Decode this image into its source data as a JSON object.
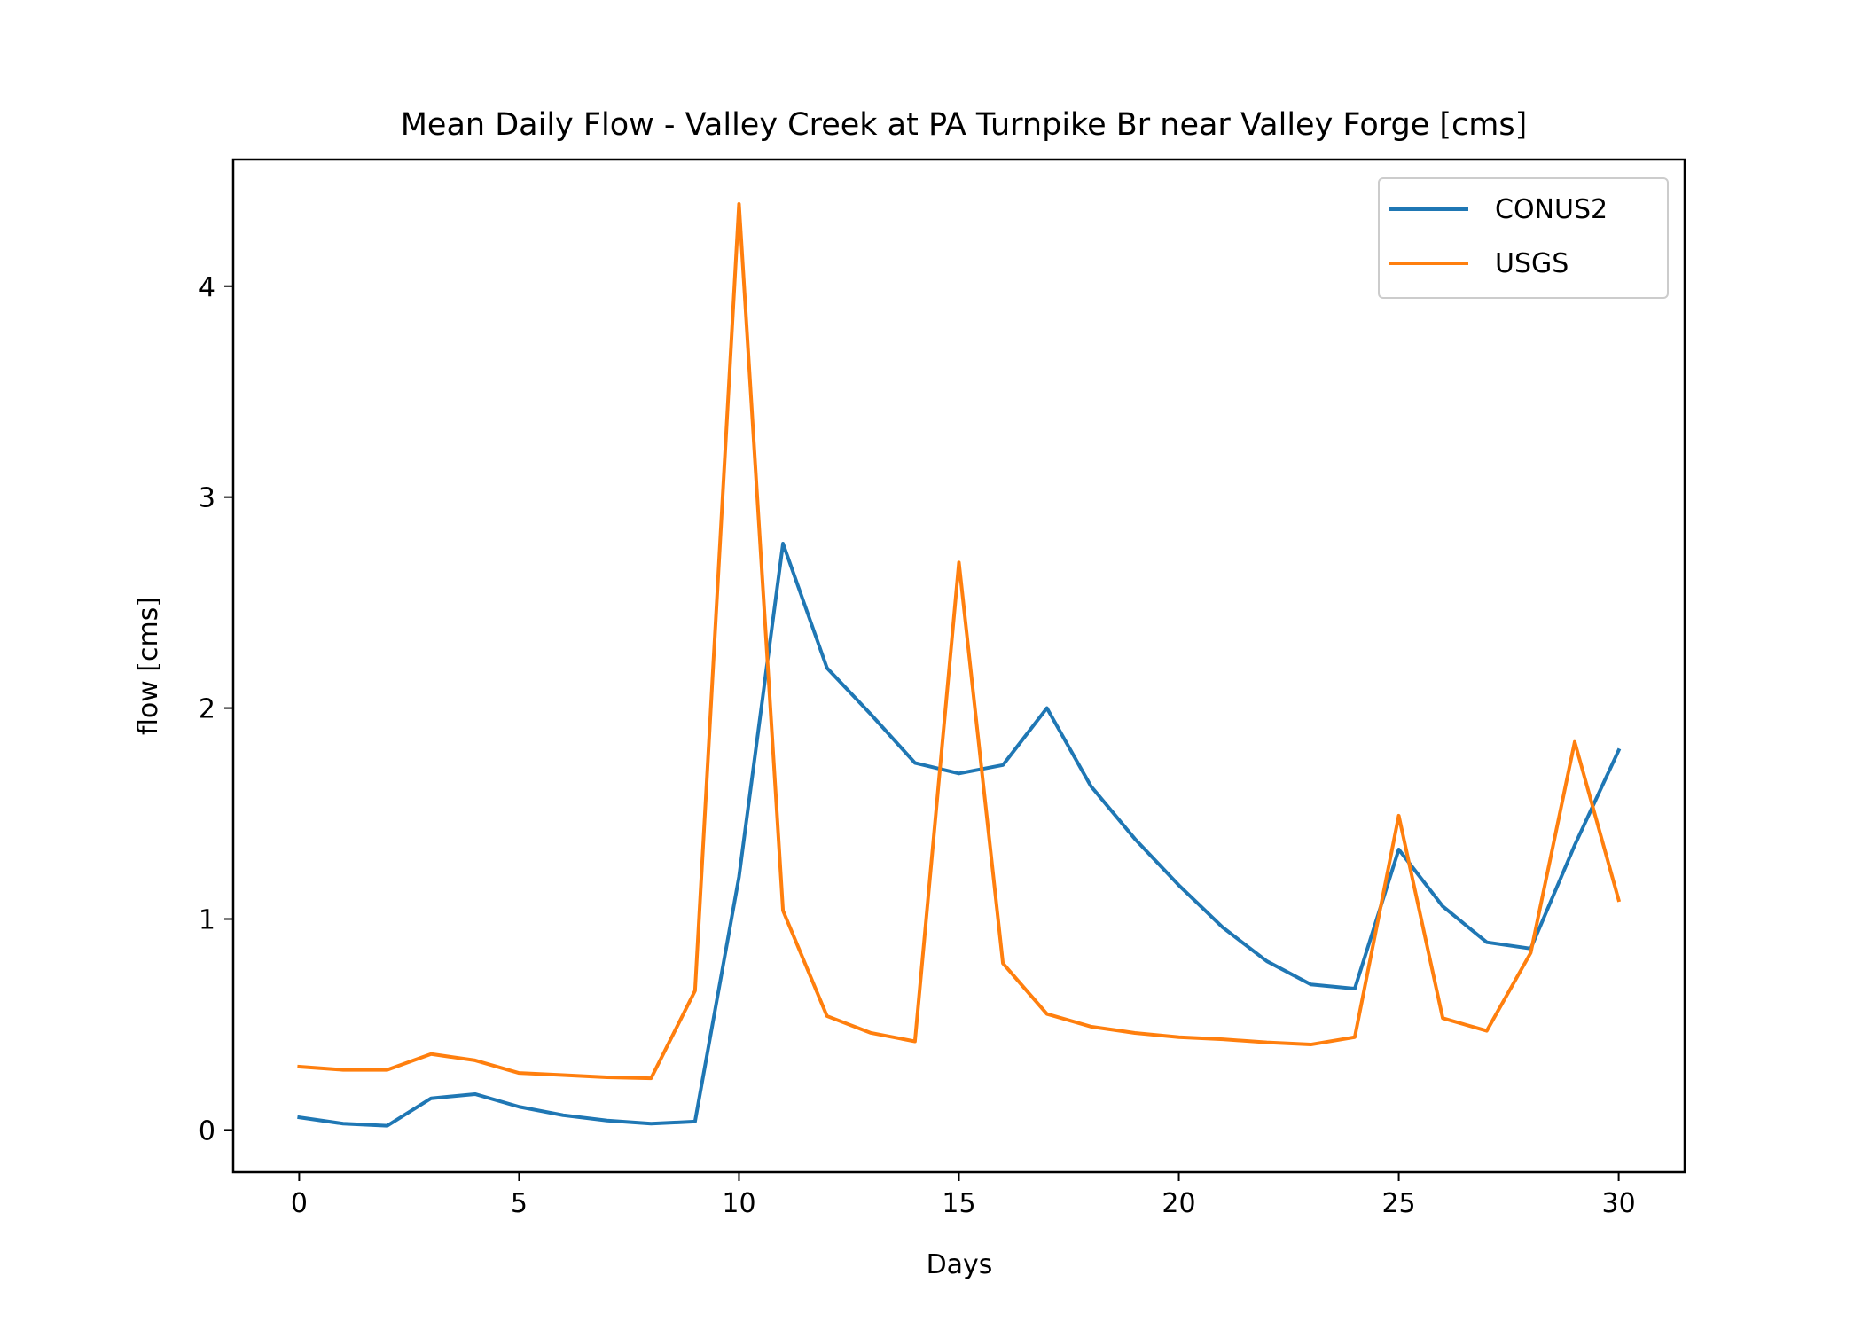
{
  "chart_data": {
    "type": "line",
    "title": "Mean Daily Flow - Valley Creek at PA Turnpike Br near Valley Forge [cms]",
    "xlabel": "Days",
    "ylabel": "flow [cms]",
    "xlim": [
      -1.5,
      31.5
    ],
    "ylim": [
      -0.2,
      4.6
    ],
    "xticks": [
      0,
      5,
      10,
      15,
      20,
      25,
      30
    ],
    "yticks": [
      0,
      1,
      2,
      3,
      4
    ],
    "grid": false,
    "legend_position": "top-right",
    "x": [
      0,
      1,
      2,
      3,
      4,
      5,
      6,
      7,
      8,
      9,
      10,
      11,
      12,
      13,
      14,
      15,
      16,
      17,
      18,
      19,
      20,
      21,
      22,
      23,
      24,
      25,
      26,
      27,
      28,
      29,
      30
    ],
    "series": [
      {
        "name": "CONUS2",
        "color": "#1f77b4",
        "values": [
          0.06,
          0.03,
          0.02,
          0.15,
          0.17,
          0.11,
          0.07,
          0.045,
          0.03,
          0.04,
          1.2,
          2.78,
          2.19,
          1.97,
          1.74,
          1.69,
          1.73,
          2.0,
          1.63,
          1.38,
          1.16,
          0.96,
          0.8,
          0.69,
          0.67,
          1.33,
          1.06,
          0.89,
          0.86,
          1.35,
          1.8
        ]
      },
      {
        "name": "USGS",
        "color": "#ff7f0e",
        "values": [
          0.3,
          0.285,
          0.285,
          0.36,
          0.33,
          0.27,
          0.26,
          0.25,
          0.245,
          0.66,
          4.39,
          1.04,
          0.54,
          0.46,
          0.42,
          2.69,
          0.79,
          0.55,
          0.49,
          0.46,
          0.44,
          0.43,
          0.415,
          0.405,
          0.44,
          1.49,
          0.53,
          0.47,
          0.84,
          1.84,
          1.09
        ]
      }
    ]
  }
}
